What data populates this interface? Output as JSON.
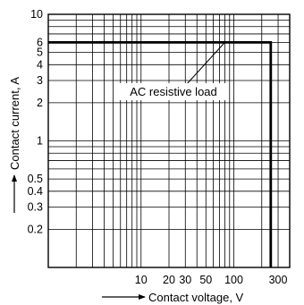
{
  "chart_data": {
    "type": "line",
    "xlabel": "Contact voltage, V",
    "ylabel": "Contact current, A",
    "x_scale": "log",
    "y_scale": "log",
    "xlim": [
      1,
      400
    ],
    "ylim": [
      0.1,
      10
    ],
    "grid": true,
    "x_ticks": [
      {
        "value": 10,
        "label": "10"
      },
      {
        "value": 20,
        "label": "20"
      },
      {
        "value": 30,
        "label": "30"
      },
      {
        "value": 50,
        "label": "50"
      },
      {
        "value": 100,
        "label": "100"
      },
      {
        "value": 300,
        "label": "300"
      }
    ],
    "y_ticks": [
      {
        "value": 10,
        "label": "10"
      },
      {
        "value": 6,
        "label": "6"
      },
      {
        "value": 5,
        "label": "5"
      },
      {
        "value": 4,
        "label": "4"
      },
      {
        "value": 3,
        "label": "3"
      },
      {
        "value": 2,
        "label": "2"
      },
      {
        "value": 1,
        "label": "1"
      },
      {
        "value": 0.5,
        "label": "0.5"
      },
      {
        "value": 0.4,
        "label": "0.4"
      },
      {
        "value": 0.3,
        "label": "0.3"
      },
      {
        "value": 0.2,
        "label": "0.2"
      }
    ],
    "series": [
      {
        "label": "AC resistive load",
        "x": [
          1,
          250,
          250
        ],
        "y": [
          6,
          6,
          0.1
        ]
      }
    ],
    "annotation": {
      "text": "AC resistive load",
      "points_to": {
        "x": 80,
        "y": 6
      }
    }
  }
}
